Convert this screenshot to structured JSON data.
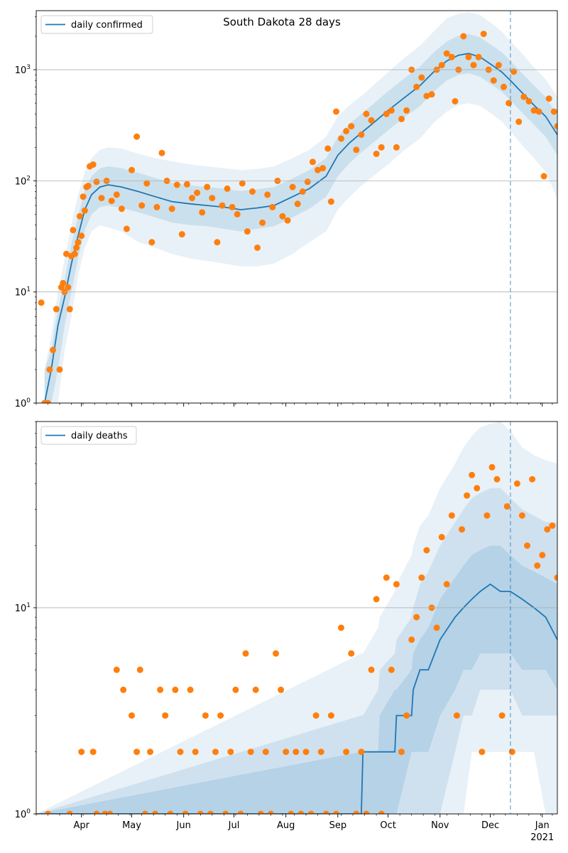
{
  "title": "South Dakota 28 days",
  "colors": {
    "line": "#1f77b4",
    "points": "#ff7f0e",
    "band": "#1f77b4",
    "grid": "#b0b0b0",
    "vline": "#1f77b4"
  },
  "chart_data": [
    {
      "type": "line",
      "yscale": "log",
      "ylim": [
        1,
        3400
      ],
      "grid": "horizontal major",
      "legend": {
        "label": "daily confirmed",
        "placement": "top-left"
      },
      "title": "South Dakota 28 days",
      "xlim": [
        "2020-03-05",
        "2021-01-10"
      ],
      "x_ticks": [
        {
          "date": "2020-04-01",
          "label": "Apr"
        },
        {
          "date": "2020-05-01",
          "label": "May"
        },
        {
          "date": "2020-06-01",
          "label": "Jun"
        },
        {
          "date": "2020-07-01",
          "label": "Jul"
        },
        {
          "date": "2020-08-01",
          "label": "Aug"
        },
        {
          "date": "2020-09-01",
          "label": "Sep"
        },
        {
          "date": "2020-10-01",
          "label": "Oct"
        },
        {
          "date": "2020-11-01",
          "label": "Nov"
        },
        {
          "date": "2020-12-01",
          "label": "Dec"
        },
        {
          "date": "2021-01-01",
          "label": "Jan",
          "sublabel": "2021"
        }
      ],
      "y_ticks": [
        {
          "value": 1,
          "base": "10",
          "exp": "0"
        },
        {
          "value": 10,
          "base": "10",
          "exp": "1"
        },
        {
          "value": 100,
          "base": "10",
          "exp": "2"
        },
        {
          "value": 1000,
          "base": "10",
          "exp": "3"
        }
      ],
      "forecast_start": "2020-12-13",
      "line_series": {
        "name": "daily confirmed",
        "x": [
          "2020-03-10",
          "2020-03-14",
          "2020-03-18",
          "2020-03-22",
          "2020-03-26",
          "2020-03-30",
          "2020-04-03",
          "2020-04-07",
          "2020-04-12",
          "2020-04-17",
          "2020-04-25",
          "2020-05-05",
          "2020-05-15",
          "2020-05-25",
          "2020-06-05",
          "2020-06-15",
          "2020-06-25",
          "2020-07-05",
          "2020-07-15",
          "2020-07-25",
          "2020-08-05",
          "2020-08-15",
          "2020-08-25",
          "2020-09-01",
          "2020-09-08",
          "2020-09-15",
          "2020-09-22",
          "2020-10-01",
          "2020-10-10",
          "2020-10-20",
          "2020-10-28",
          "2020-11-05",
          "2020-11-12",
          "2020-11-18",
          "2020-11-25",
          "2020-12-02",
          "2020-12-08",
          "2020-12-13",
          "2020-12-20",
          "2020-12-27",
          "2021-01-03",
          "2021-01-10"
        ],
        "y": [
          1,
          2,
          5,
          9,
          18,
          32,
          55,
          75,
          88,
          92,
          88,
          80,
          72,
          65,
          62,
          60,
          58,
          55,
          57,
          60,
          72,
          85,
          110,
          170,
          220,
          270,
          330,
          430,
          550,
          720,
          950,
          1200,
          1350,
          1400,
          1300,
          1100,
          950,
          800,
          620,
          480,
          380,
          260
        ]
      },
      "bands": [
        {
          "level": "outer",
          "lower": [
            1,
            1,
            1,
            3,
            6,
            14,
            25,
            35,
            40,
            38,
            35,
            28,
            25,
            22,
            20,
            19,
            18,
            17,
            17,
            18,
            22,
            28,
            35,
            55,
            72,
            90,
            110,
            140,
            185,
            240,
            330,
            420,
            480,
            500,
            470,
            400,
            340,
            280,
            210,
            160,
            120,
            70
          ],
          "upper": [
            2,
            4,
            10,
            20,
            40,
            75,
            120,
            160,
            190,
            200,
            195,
            175,
            160,
            150,
            140,
            135,
            130,
            125,
            128,
            135,
            160,
            190,
            250,
            380,
            480,
            580,
            720,
            950,
            1250,
            1650,
            2200,
            2900,
            3200,
            3300,
            3100,
            2600,
            2200,
            1800,
            1400,
            1050,
            820,
            570
          ]
        },
        {
          "level": "inner",
          "lower": [
            1,
            1,
            2,
            5,
            10,
            20,
            36,
            50,
            58,
            60,
            57,
            52,
            47,
            42,
            40,
            39,
            37,
            35,
            37,
            39,
            47,
            56,
            72,
            110,
            145,
            180,
            220,
            285,
            365,
            470,
            630,
            800,
            900,
            930,
            860,
            730,
            630,
            530,
            410,
            320,
            250,
            170
          ],
          "upper": [
            2,
            3,
            7,
            13,
            27,
            48,
            82,
            110,
            130,
            135,
            130,
            118,
            106,
            96,
            91,
            88,
            85,
            81,
            84,
            88,
            105,
            125,
            160,
            250,
            325,
            400,
            490,
            640,
            820,
            1070,
            1420,
            1800,
            2020,
            2100,
            1950,
            1650,
            1430,
            1200,
            930,
            720,
            570,
            390
          ]
        }
      ],
      "scatter": {
        "x": [
          "2020-03-08",
          "2020-03-10",
          "2020-03-12",
          "2020-03-13",
          "2020-03-15",
          "2020-03-17",
          "2020-03-19",
          "2020-03-20",
          "2020-03-21",
          "2020-03-22",
          "2020-03-23",
          "2020-03-24",
          "2020-03-25",
          "2020-03-26",
          "2020-03-27",
          "2020-03-28",
          "2020-03-29",
          "2020-03-30",
          "2020-03-31",
          "2020-04-01",
          "2020-04-02",
          "2020-04-03",
          "2020-04-04",
          "2020-04-05",
          "2020-04-06",
          "2020-04-08",
          "2020-04-10",
          "2020-04-13",
          "2020-04-16",
          "2020-04-19",
          "2020-04-22",
          "2020-04-25",
          "2020-04-28",
          "2020-05-01",
          "2020-05-04",
          "2020-05-07",
          "2020-05-10",
          "2020-05-13",
          "2020-05-16",
          "2020-05-19",
          "2020-05-22",
          "2020-05-25",
          "2020-05-28",
          "2020-05-31",
          "2020-06-03",
          "2020-06-06",
          "2020-06-09",
          "2020-06-12",
          "2020-06-15",
          "2020-06-18",
          "2020-06-21",
          "2020-06-24",
          "2020-06-27",
          "2020-06-30",
          "2020-07-03",
          "2020-07-06",
          "2020-07-09",
          "2020-07-12",
          "2020-07-15",
          "2020-07-18",
          "2020-07-21",
          "2020-07-24",
          "2020-07-27",
          "2020-07-30",
          "2020-08-02",
          "2020-08-05",
          "2020-08-08",
          "2020-08-11",
          "2020-08-14",
          "2020-08-17",
          "2020-08-20",
          "2020-08-23",
          "2020-08-26",
          "2020-08-28",
          "2020-08-31",
          "2020-09-03",
          "2020-09-06",
          "2020-09-09",
          "2020-09-12",
          "2020-09-15",
          "2020-09-18",
          "2020-09-21",
          "2020-09-24",
          "2020-09-27",
          "2020-09-30",
          "2020-10-03",
          "2020-10-06",
          "2020-10-09",
          "2020-10-12",
          "2020-10-15",
          "2020-10-18",
          "2020-10-21",
          "2020-10-24",
          "2020-10-27",
          "2020-10-30",
          "2020-11-02",
          "2020-11-05",
          "2020-11-08",
          "2020-11-10",
          "2020-11-12",
          "2020-11-15",
          "2020-11-18",
          "2020-11-21",
          "2020-11-24",
          "2020-11-27",
          "2020-11-30",
          "2020-12-03",
          "2020-12-06",
          "2020-12-09",
          "2020-12-12",
          "2020-12-15",
          "2020-12-18",
          "2020-12-21",
          "2020-12-24",
          "2020-12-27",
          "2020-12-30",
          "2021-01-02",
          "2021-01-05",
          "2021-01-08",
          "2021-01-10"
        ],
        "y": [
          8,
          1,
          1,
          2,
          3,
          7,
          2,
          11,
          12,
          10,
          22,
          11,
          7,
          21,
          36,
          22,
          25,
          28,
          48,
          32,
          72,
          54,
          88,
          90,
          135,
          140,
          98,
          70,
          100,
          66,
          75,
          56,
          37,
          125,
          250,
          60,
          95,
          28,
          58,
          178,
          100,
          56,
          92,
          33,
          93,
          70,
          78,
          52,
          88,
          70,
          28,
          60,
          85,
          58,
          50,
          95,
          35,
          80,
          25,
          42,
          75,
          58,
          100,
          48,
          44,
          88,
          62,
          80,
          98,
          148,
          125,
          130,
          195,
          65,
          420,
          240,
          280,
          310,
          190,
          260,
          400,
          350,
          175,
          200,
          400,
          430,
          200,
          360,
          430,
          1000,
          700,
          850,
          580,
          600,
          1000,
          1100,
          1400,
          1300,
          520,
          1000,
          2000,
          1300,
          1100,
          1300,
          2100,
          1000,
          800,
          1100,
          700,
          500,
          960,
          340,
          570,
          520,
          430,
          420,
          110,
          550,
          420,
          310
        ]
      }
    },
    {
      "type": "line",
      "yscale": "log",
      "ylim": [
        1,
        80
      ],
      "grid": "horizontal major",
      "legend": {
        "label": "daily deaths",
        "placement": "top-left"
      },
      "xlim": [
        "2020-03-05",
        "2021-01-10"
      ],
      "y_ticks": [
        {
          "value": 1,
          "base": "10",
          "exp": "0"
        },
        {
          "value": 10,
          "base": "10",
          "exp": "1"
        }
      ],
      "forecast_start": "2020-12-13",
      "line_series": {
        "name": "daily deaths",
        "x": [
          "2020-03-05",
          "2020-09-15",
          "2020-09-16",
          "2020-09-25",
          "2020-09-26",
          "2020-10-05",
          "2020-10-06",
          "2020-10-15",
          "2020-10-16",
          "2020-10-20",
          "2020-10-25",
          "2020-11-01",
          "2020-11-10",
          "2020-11-15",
          "2020-11-20",
          "2020-11-25",
          "2020-12-01",
          "2020-12-07",
          "2020-12-13",
          "2020-12-20",
          "2020-12-27",
          "2021-01-03",
          "2021-01-10"
        ],
        "y": [
          1,
          1,
          2,
          2,
          2,
          2,
          3,
          3,
          4,
          5,
          5,
          7,
          9,
          10,
          11,
          12,
          13,
          12,
          12,
          11,
          10,
          9,
          7
        ]
      },
      "bands": [
        {
          "level": "outer",
          "lower": [
            1,
            1,
            1,
            1,
            1,
            1,
            1,
            1,
            1,
            1,
            1,
            1,
            1,
            1,
            2,
            2,
            2,
            2,
            2,
            2,
            2,
            1,
            1
          ],
          "upper": [
            1,
            6,
            6,
            8,
            9,
            12,
            13,
            18,
            20,
            25,
            28,
            38,
            50,
            60,
            68,
            75,
            78,
            80,
            72,
            60,
            55,
            52,
            50
          ]
        },
        {
          "level": "mid",
          "lower": [
            1,
            1,
            1,
            1,
            1,
            1,
            1,
            1,
            1,
            1,
            1,
            1,
            2,
            3,
            3,
            4,
            4,
            4,
            4,
            3,
            3,
            3,
            3
          ],
          "upper": [
            1,
            3,
            3,
            4,
            5,
            6,
            7,
            9,
            10,
            13,
            15,
            20,
            26,
            30,
            34,
            36,
            38,
            38,
            34,
            30,
            28,
            26,
            26
          ]
        },
        {
          "level": "inner",
          "lower": [
            1,
            1,
            1,
            1,
            1,
            1,
            1,
            2,
            2,
            2,
            2,
            3,
            4,
            5,
            5,
            6,
            6,
            6,
            6,
            5,
            5,
            5,
            4
          ],
          "upper": [
            1,
            2,
            2,
            2,
            3,
            4,
            4,
            5,
            6,
            7,
            8,
            11,
            14,
            16,
            18,
            19,
            20,
            20,
            18,
            16,
            15,
            14,
            13
          ]
        }
      ],
      "scatter": {
        "x": [
          "2020-03-12",
          "2020-03-25",
          "2020-04-01",
          "2020-04-08",
          "2020-04-10",
          "2020-04-15",
          "2020-04-18",
          "2020-04-22",
          "2020-04-26",
          "2020-05-01",
          "2020-05-04",
          "2020-05-06",
          "2020-05-09",
          "2020-05-12",
          "2020-05-15",
          "2020-05-18",
          "2020-05-21",
          "2020-05-24",
          "2020-05-27",
          "2020-05-30",
          "2020-06-02",
          "2020-06-05",
          "2020-06-08",
          "2020-06-11",
          "2020-06-14",
          "2020-06-17",
          "2020-06-20",
          "2020-06-23",
          "2020-06-26",
          "2020-06-29",
          "2020-07-02",
          "2020-07-05",
          "2020-07-08",
          "2020-07-11",
          "2020-07-14",
          "2020-07-17",
          "2020-07-20",
          "2020-07-23",
          "2020-07-26",
          "2020-07-29",
          "2020-08-01",
          "2020-08-04",
          "2020-08-07",
          "2020-08-10",
          "2020-08-13",
          "2020-08-16",
          "2020-08-19",
          "2020-08-22",
          "2020-08-25",
          "2020-08-28",
          "2020-08-31",
          "2020-09-03",
          "2020-09-06",
          "2020-09-09",
          "2020-09-12",
          "2020-09-15",
          "2020-09-18",
          "2020-09-21",
          "2020-09-24",
          "2020-09-27",
          "2020-09-30",
          "2020-10-03",
          "2020-10-06",
          "2020-10-09",
          "2020-10-12",
          "2020-10-15",
          "2020-10-18",
          "2020-10-21",
          "2020-10-24",
          "2020-10-27",
          "2020-10-30",
          "2020-11-02",
          "2020-11-05",
          "2020-11-08",
          "2020-11-11",
          "2020-11-14",
          "2020-11-17",
          "2020-11-20",
          "2020-11-23",
          "2020-11-26",
          "2020-11-29",
          "2020-12-02",
          "2020-12-05",
          "2020-12-08",
          "2020-12-11",
          "2020-12-14",
          "2020-12-17",
          "2020-12-20",
          "2020-12-23",
          "2020-12-26",
          "2020-12-29",
          "2021-01-01",
          "2021-01-04",
          "2021-01-07",
          "2021-01-10"
        ],
        "y": [
          1,
          1,
          2,
          2,
          1,
          1,
          1,
          5,
          4,
          3,
          2,
          5,
          1,
          2,
          1,
          4,
          3,
          1,
          4,
          2,
          1,
          4,
          2,
          1,
          3,
          1,
          2,
          3,
          1,
          2,
          4,
          1,
          6,
          2,
          4,
          1,
          2,
          1,
          6,
          4,
          2,
          1,
          2,
          1,
          2,
          1,
          3,
          2,
          1,
          3,
          1,
          8,
          2,
          6,
          1,
          2,
          1,
          5,
          11,
          1,
          14,
          5,
          13,
          2,
          3,
          7,
          9,
          14,
          19,
          10,
          8,
          22,
          13,
          28,
          3,
          24,
          35,
          44,
          38,
          2,
          28,
          48,
          42,
          3,
          31,
          2,
          40,
          28,
          20,
          42,
          16,
          18,
          24,
          25,
          14
        ]
      }
    }
  ]
}
